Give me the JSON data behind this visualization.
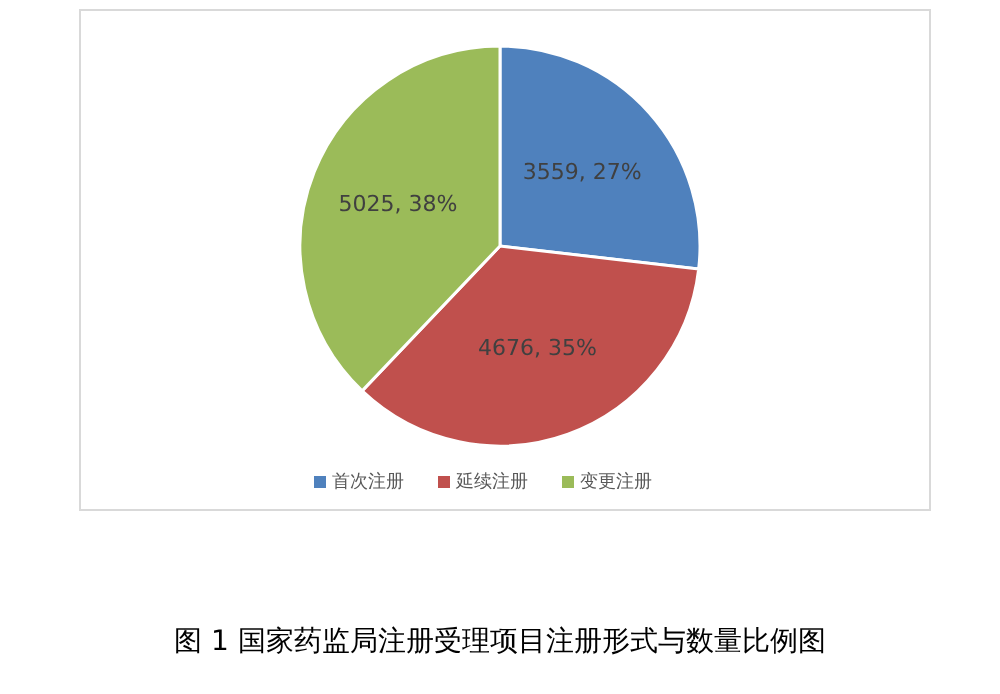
{
  "chart_data": {
    "type": "pie",
    "title": "图 1  国家药监局注册受理项目注册形式与数量比例图",
    "categories": [
      "首次注册",
      "延续注册",
      "变更注册"
    ],
    "values": [
      3559,
      4676,
      5025
    ],
    "colors": [
      "#4f81bd",
      "#c0504d",
      "#9bbb59"
    ],
    "value_labels": [
      "3559, 27%",
      "4676, 35%",
      "5025, 38%"
    ],
    "legend": "bottom"
  }
}
